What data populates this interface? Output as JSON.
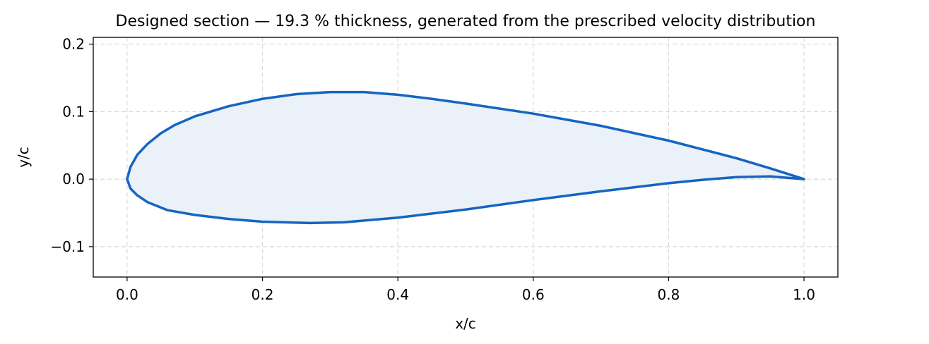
{
  "chart_data": {
    "type": "line",
    "title": "Designed section — 19.3 % thickness, generated from the prescribed velocity distribution",
    "xlabel": "x/c",
    "ylabel": "y/c",
    "xlim": [
      -0.05,
      1.05
    ],
    "ylim": [
      -0.145,
      0.21
    ],
    "xticks": [
      0.0,
      0.2,
      0.4,
      0.6,
      0.8,
      1.0
    ],
    "xtick_labels": [
      "0.0",
      "0.2",
      "0.4",
      "0.6",
      "0.8",
      "1.0"
    ],
    "yticks": [
      -0.1,
      0.0,
      0.1,
      0.2
    ],
    "ytick_labels": [
      "−0.1",
      "0.0",
      "0.1",
      "0.2"
    ],
    "grid": true,
    "line_color": "#1565c0",
    "fill_color": "#eaf1f8",
    "series": [
      {
        "x": [
          1.0,
          0.95,
          0.9,
          0.8,
          0.7,
          0.6,
          0.5,
          0.45,
          0.4,
          0.35,
          0.3,
          0.25,
          0.2,
          0.15,
          0.1,
          0.07,
          0.05,
          0.03,
          0.015,
          0.005,
          0.0,
          0.005,
          0.015,
          0.03,
          0.06,
          0.1,
          0.15,
          0.2,
          0.27,
          0.32,
          0.4,
          0.5,
          0.6,
          0.7,
          0.8,
          0.85,
          0.9,
          0.95,
          1.0
        ],
        "y": [
          0.0,
          0.016,
          0.031,
          0.057,
          0.079,
          0.097,
          0.112,
          0.119,
          0.125,
          0.129,
          0.129,
          0.126,
          0.119,
          0.108,
          0.093,
          0.08,
          0.068,
          0.052,
          0.036,
          0.018,
          0.0,
          -0.014,
          -0.024,
          -0.034,
          -0.046,
          -0.053,
          -0.059,
          -0.063,
          -0.065,
          -0.064,
          -0.057,
          -0.045,
          -0.031,
          -0.018,
          -0.006,
          -0.001,
          0.003,
          0.004,
          0.0
        ]
      }
    ]
  }
}
